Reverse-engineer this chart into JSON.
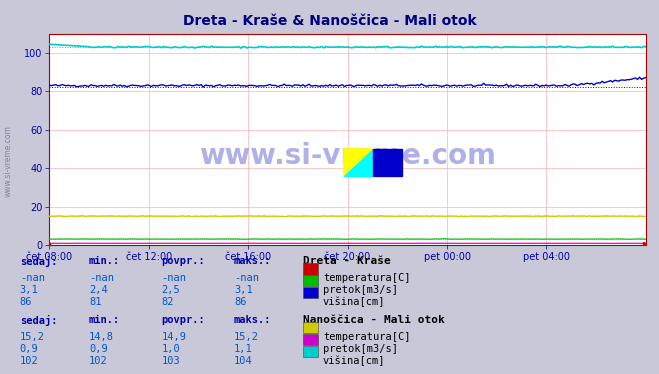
{
  "title": "Dreta - Kraše & Nanoščica - Mali otok",
  "title_color": "#000080",
  "bg_color": "#c8c8d8",
  "plot_bg": "#ffffff",
  "grid_color": "#ffb0b0",
  "xticklabels": [
    "čet 08:00",
    "čet 12:00",
    "čet 16:00",
    "čet 20:00",
    "pet 00:00",
    "pet 04:00"
  ],
  "yticks": [
    0,
    20,
    40,
    60,
    80,
    100
  ],
  "ylim": [
    0,
    110
  ],
  "dreta_visina_color": "#0000cc",
  "dreta_pretok_color": "#00bb00",
  "dreta_temp_color": "#cc0000",
  "nano_visina_color": "#00cccc",
  "nano_temp_color": "#cccc00",
  "nano_pretok_color": "#cc00cc",
  "station1_name": "Dreta - Kraše",
  "station2_name": "Nanoščica - Mali otok",
  "s1_sedaj": [
    "-nan",
    "3,1",
    "86"
  ],
  "s1_min": [
    "-nan",
    "2,4",
    "81"
  ],
  "s1_povpr": [
    "-nan",
    "2,5",
    "82"
  ],
  "s1_maks": [
    "-nan",
    "3,1",
    "86"
  ],
  "s1_labels": [
    "temperatura[C]",
    "pretok[m3/s]",
    "višina[cm]"
  ],
  "s1_colors": [
    "#cc0000",
    "#00bb00",
    "#0000cc"
  ],
  "s2_sedaj": [
    "15,2",
    "0,9",
    "102"
  ],
  "s2_min": [
    "14,8",
    "0,9",
    "102"
  ],
  "s2_povpr": [
    "14,9",
    "1,0",
    "103"
  ],
  "s2_maks": [
    "15,2",
    "1,1",
    "104"
  ],
  "s2_labels": [
    "temperatura[C]",
    "pretok[m3/s]",
    "višina[cm]"
  ],
  "s2_colors": [
    "#cccc00",
    "#cc00cc",
    "#00cccc"
  ],
  "table_header_color": "#0000aa",
  "table_data_color": "#0055cc"
}
